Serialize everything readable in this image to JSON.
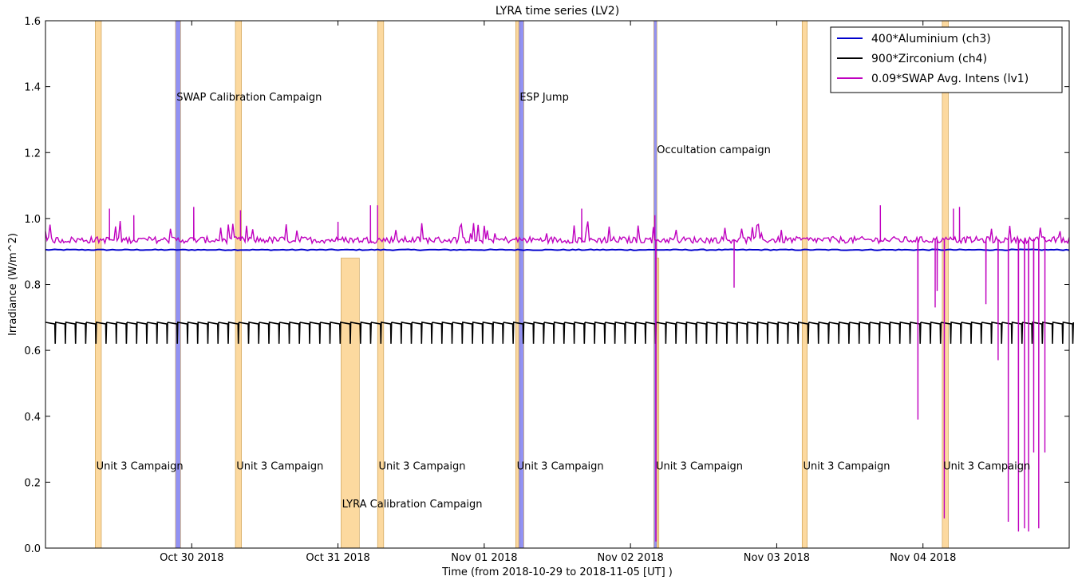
{
  "chart_data": {
    "type": "line",
    "title": "LYRA time series (LV2)",
    "xlabel": "Time (from 2018-10-29 to 2018-11-05 [UT] )",
    "ylabel": "Irradiance (W/m^2)",
    "xlim": [
      "2018-10-29T00:00",
      "2018-11-05T00:00"
    ],
    "ylim": [
      0.0,
      1.6
    ],
    "x_ticks": [
      {
        "t": "2018-10-30T00:00",
        "label": "Oct 30 2018"
      },
      {
        "t": "2018-10-31T00:00",
        "label": "Oct 31 2018"
      },
      {
        "t": "2018-11-01T00:00",
        "label": "Nov 01 2018"
      },
      {
        "t": "2018-11-02T00:00",
        "label": "Nov 02 2018"
      },
      {
        "t": "2018-11-03T00:00",
        "label": "Nov 03 2018"
      },
      {
        "t": "2018-11-04T00:00",
        "label": "Nov 04 2018"
      }
    ],
    "y_ticks": [
      "0.0",
      "0.2",
      "0.4",
      "0.6",
      "0.8",
      "1.0",
      "1.2",
      "1.4",
      "1.6"
    ],
    "legend_position": "top-right",
    "grid": false,
    "series": [
      {
        "name": "400*Aluminium (ch3)",
        "color": "#0000cc",
        "baseline": 0.905,
        "noise": 0.003
      },
      {
        "name": "900*Zirconium (ch4)",
        "color": "#000000",
        "high": 0.685,
        "low": 0.62,
        "dip_period_hours": 1.67,
        "gap": [
          "2018-10-31T20:50",
          "2018-10-31T03:15"
        ]
      },
      {
        "name": "0.09*SWAP Avg. Intens (lv1)",
        "color": "#bf00bf",
        "baseline": 0.935,
        "peaks": [
          {
            "t": "2018-10-29T10:30",
            "y": 1.03
          },
          {
            "t": "2018-10-29T14:30",
            "y": 1.01
          },
          {
            "t": "2018-10-30T00:20",
            "y": 1.035
          },
          {
            "t": "2018-10-30T08:00",
            "y": 1.025
          },
          {
            "t": "2018-10-31T00:00",
            "y": 0.99
          },
          {
            "t": "2018-10-31T05:20",
            "y": 1.04
          },
          {
            "t": "2018-10-31T06:30",
            "y": 1.04
          },
          {
            "t": "2018-11-01T16:00",
            "y": 1.03
          },
          {
            "t": "2018-11-02T04:00",
            "y": 1.01
          },
          {
            "t": "2018-11-03T17:00",
            "y": 1.04
          },
          {
            "t": "2018-11-04T05:00",
            "y": 1.03
          },
          {
            "t": "2018-11-04T06:00",
            "y": 1.035
          }
        ],
        "dips": [
          {
            "t": "2018-11-02T04:10",
            "y": 0.02
          },
          {
            "t": "2018-11-02T17:00",
            "y": 0.79
          },
          {
            "t": "2018-11-03T23:10",
            "y": 0.39
          },
          {
            "t": "2018-11-04T02:00",
            "y": 0.73
          },
          {
            "t": "2018-11-04T02:20",
            "y": 0.78
          },
          {
            "t": "2018-11-04T03:30",
            "y": 0.09
          },
          {
            "t": "2018-11-04T10:20",
            "y": 0.74
          },
          {
            "t": "2018-11-04T12:20",
            "y": 0.57
          },
          {
            "t": "2018-11-04T14:00",
            "y": 0.08
          },
          {
            "t": "2018-11-04T15:40",
            "y": 0.05
          },
          {
            "t": "2018-11-04T16:40",
            "y": 0.06
          },
          {
            "t": "2018-11-04T17:20",
            "y": 0.05
          },
          {
            "t": "2018-11-04T18:10",
            "y": 0.29
          },
          {
            "t": "2018-11-04T19:00",
            "y": 0.06
          },
          {
            "t": "2018-11-04T20:00",
            "y": 0.29
          }
        ]
      }
    ],
    "shaded_regions": [
      {
        "start": "2018-10-29T08:10",
        "end": "2018-10-29T09:10",
        "color": "#fcd79a",
        "ymax": 1.6
      },
      {
        "start": "2018-10-30T07:10",
        "end": "2018-10-30T08:10",
        "color": "#fcd79a",
        "ymax": 1.6
      },
      {
        "start": "2018-10-31T06:30",
        "end": "2018-10-31T07:30",
        "color": "#fcd79a",
        "ymax": 1.6
      },
      {
        "start": "2018-11-01T05:10",
        "end": "2018-11-01T06:00",
        "color": "#fcd79a",
        "ymax": 1.6
      },
      {
        "start": "2018-11-03T04:10",
        "end": "2018-11-03T05:00",
        "color": "#fcd79a",
        "ymax": 1.6
      },
      {
        "start": "2018-11-04T03:10",
        "end": "2018-11-04T04:10",
        "color": "#fcd79a",
        "ymax": 1.6
      },
      {
        "start": "2018-10-31T00:30",
        "end": "2018-10-31T03:30",
        "color": "#fcd79a",
        "ymax": 0.88
      },
      {
        "start": "2018-11-02T04:00",
        "end": "2018-11-02T04:40",
        "color": "#fcd79a",
        "ymax": 0.88
      },
      {
        "start": "2018-10-29T21:20",
        "end": "2018-10-29T22:10",
        "color": "#8c8cf2",
        "ymax": 1.6
      },
      {
        "start": "2018-11-01T05:40",
        "end": "2018-11-01T06:30",
        "color": "#8c8cf2",
        "ymax": 1.6
      },
      {
        "start": "2018-11-02T03:50",
        "end": "2018-11-02T04:20",
        "color": "#8c8cf2",
        "ymax": 1.6
      }
    ],
    "annotations": [
      {
        "text": "Unit 3 Campaign",
        "t": "2018-10-29T08:20",
        "y": 0.25
      },
      {
        "text": "Unit 3 Campaign",
        "t": "2018-10-30T07:20",
        "y": 0.25
      },
      {
        "text": "Unit 3 Campaign",
        "t": "2018-10-31T06:40",
        "y": 0.25
      },
      {
        "text": "Unit 3 Campaign",
        "t": "2018-11-01T05:20",
        "y": 0.25
      },
      {
        "text": "Unit 3 Campaign",
        "t": "2018-11-02T04:10",
        "y": 0.25
      },
      {
        "text": "Unit 3 Campaign",
        "t": "2018-11-03T04:20",
        "y": 0.25
      },
      {
        "text": "Unit 3 Campaign",
        "t": "2018-11-04T03:20",
        "y": 0.25
      },
      {
        "text": "LYRA Calibration Campaign",
        "t": "2018-10-31T00:40",
        "y": 0.135
      },
      {
        "text": "SWAP Calibration Campaign",
        "t": "2018-10-29T21:30",
        "y": 1.37
      },
      {
        "text": "ESP Jump",
        "t": "2018-11-01T05:50",
        "y": 1.37
      },
      {
        "text": "Occultation campaign",
        "t": "2018-11-02T04:20",
        "y": 1.21
      }
    ]
  }
}
